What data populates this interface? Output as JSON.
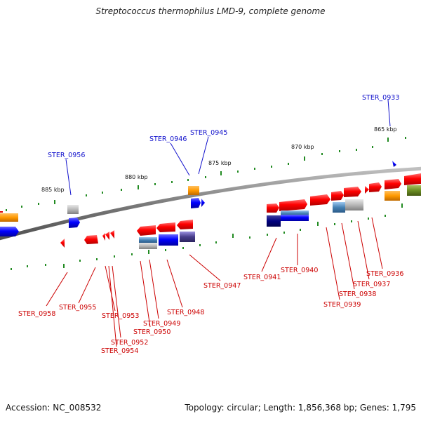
{
  "title": "Streptococcus thermophilus LMD-9, complete genome",
  "footer": {
    "accession": "Accession: NC_008532",
    "summary": "Topology: circular; Length: 1,856,368 bp; Genes: 1,795"
  },
  "colors": {
    "forward_label": "#1010cc",
    "reverse_label": "#cc0000",
    "backbone": "#808080",
    "tick": "#228b22"
  },
  "scale_labels": [
    "885 kbp",
    "880 kbp",
    "875 kbp",
    "870 kbp",
    "865 kbp"
  ],
  "gene_labels": {
    "forward": [
      "STER_0933",
      "STER_0945",
      "STER_0946",
      "STER_0956"
    ],
    "reverse": [
      "STER_0958",
      "STER_0955",
      "STER_0953",
      "STER_0952",
      "STER_0954",
      "STER_0950",
      "STER_0949",
      "STER_0948",
      "STER_0947",
      "STER_0941",
      "STER_0940",
      "STER_0939",
      "STER_0938",
      "STER_0937",
      "STER_0936"
    ]
  }
}
